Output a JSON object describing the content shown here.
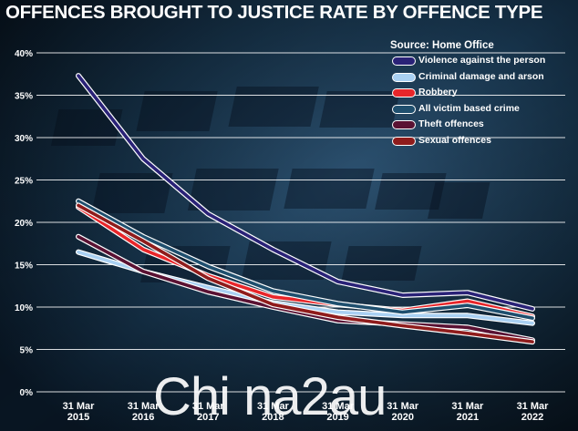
{
  "title": "OFFENCES BROUGHT TO JUSTICE RATE BY OFFENCE TYPE",
  "source": "Source: Home Office",
  "watermark": "Chi na2au",
  "chart_data": {
    "type": "line",
    "title": "OFFENCES BROUGHT TO JUSTICE RATE BY OFFENCE TYPE",
    "xlabel": "",
    "ylabel": "",
    "grid": true,
    "legend_position": "top-right",
    "categories": [
      "31 Mar 2015",
      "31 Mar 2016",
      "31 Mar 2017",
      "31 Mar 2018",
      "31 Mar 2019",
      "31 Mar 2020",
      "31 Mar 2021",
      "31 Mar 2022"
    ],
    "categories_split": [
      [
        "31 Mar",
        "2015"
      ],
      [
        "31 Mar",
        "2016"
      ],
      [
        "31 Mar",
        "2017"
      ],
      [
        "31 Mar",
        "2018"
      ],
      [
        "31 Mar",
        "2019"
      ],
      [
        "31 Mar",
        "2020"
      ],
      [
        "31 Mar",
        "2021"
      ],
      [
        "31 Mar",
        "2022"
      ]
    ],
    "ylim": [
      0,
      40
    ],
    "yticks": [
      0,
      5,
      10,
      15,
      20,
      25,
      30,
      35,
      40
    ],
    "ytick_labels": [
      "0%",
      "5%",
      "10%",
      "15%",
      "20%",
      "25%",
      "30%",
      "35%",
      "40%"
    ],
    "series": [
      {
        "name": "Violence against the person",
        "color": "#2a2277",
        "values": [
          37.3,
          27.5,
          21.0,
          16.8,
          13.0,
          11.4,
          11.7,
          9.8
        ]
      },
      {
        "name": "Criminal damage and arson",
        "color": "#a9d0f2",
        "values": [
          16.5,
          14.2,
          12.3,
          10.5,
          9.4,
          9.0,
          9.0,
          8.1
        ]
      },
      {
        "name": "Robbery",
        "color": "#e8262a",
        "values": [
          21.8,
          16.8,
          13.7,
          11.2,
          10.3,
          9.6,
          10.7,
          8.9
        ]
      },
      {
        "name": "All victim based crime",
        "color": "#1f4f6e",
        "values": [
          22.5,
          18.3,
          14.8,
          11.9,
          10.4,
          9.4,
          10.2,
          8.7
        ]
      },
      {
        "name": "Theft offences",
        "color": "#5a1233",
        "values": [
          18.3,
          14.2,
          11.8,
          10.0,
          8.4,
          8.0,
          7.6,
          6.1
        ]
      },
      {
        "name": "Sexual offences",
        "color": "#8f1c1c",
        "values": [
          22.0,
          17.8,
          13.4,
          10.3,
          8.8,
          7.8,
          6.9,
          5.9
        ]
      }
    ]
  }
}
